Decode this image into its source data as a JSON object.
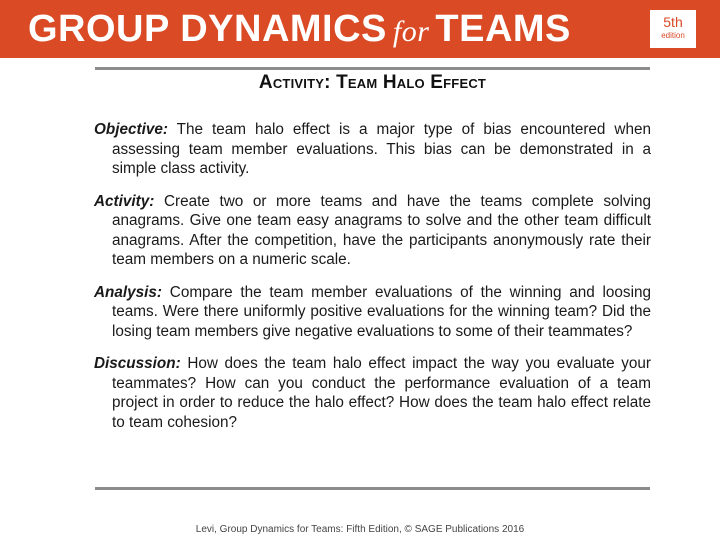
{
  "banner": {
    "title_part1": "GROUP DYNAMICS",
    "title_for": "for",
    "title_part2": "TEAMS",
    "edition_number": "5th",
    "edition_word": "edition"
  },
  "slide": {
    "heading": "Activity: Team Halo Effect"
  },
  "paragraphs": [
    {
      "term": "Objective:",
      "text": "The team halo effect is a major type of bias encountered when assessing team member evaluations. This bias can be demonstrated in a simple class activity."
    },
    {
      "term": "Activity:",
      "text": "Create two or more teams and have the teams complete solving anagrams. Give one team easy anagrams to solve and the other team difficult anagrams. After the competition, have the participants anonymously rate their team members on a numeric scale."
    },
    {
      "term": "Analysis:",
      "text": "Compare the team member evaluations of the winning and loosing teams. Were there uniformly positive evaluations for the winning team? Did the losing team members give negative evaluations to some of their teammates?"
    },
    {
      "term": "Discussion:",
      "text": "How does the team halo effect impact the way you evaluate your teammates? How can you conduct the performance evaluation of a team project in order to reduce the halo effect? How does the team halo effect relate to team cohesion?"
    }
  ],
  "footer": {
    "text": "Levi, Group Dynamics for Teams: Fifth Edition, © SAGE Publications 2016"
  }
}
